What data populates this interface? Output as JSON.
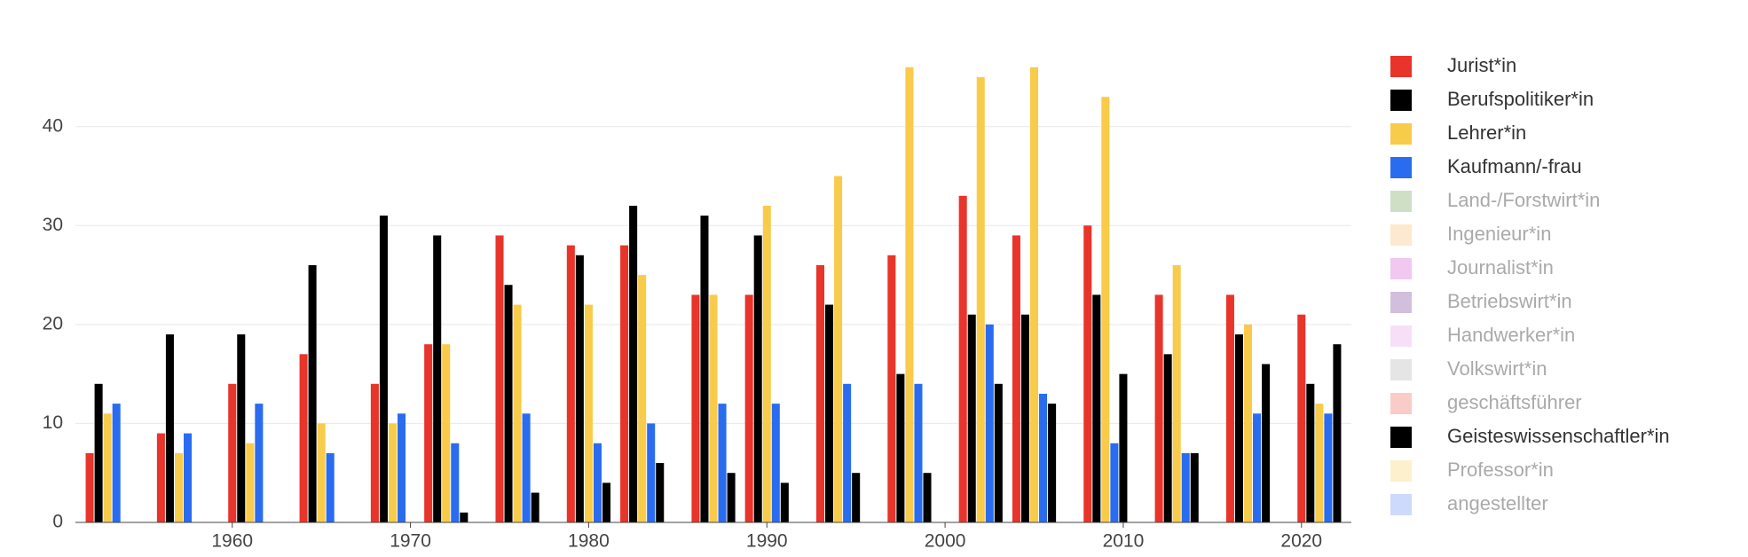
{
  "chart_data": {
    "type": "bar",
    "x": [
      1953,
      1957,
      1961,
      1965,
      1969,
      1972,
      1976,
      1980,
      1983,
      1987,
      1990,
      1994,
      1998,
      2002,
      2005,
      2009,
      2013,
      2017,
      2021
    ],
    "series": [
      {
        "name": "Jurist*in",
        "color": "#e8342a",
        "visible": true,
        "values": [
          7,
          9,
          14,
          17,
          14,
          18,
          29,
          28,
          28,
          23,
          23,
          26,
          27,
          33,
          29,
          30,
          23,
          23,
          21
        ]
      },
      {
        "name": "Berufspolitiker*in",
        "color": "#000000",
        "visible": true,
        "values": [
          14,
          19,
          19,
          26,
          31,
          29,
          24,
          27,
          32,
          31,
          29,
          22,
          15,
          21,
          21,
          23,
          17,
          19,
          14
        ]
      },
      {
        "name": "Lehrer*in",
        "color": "#f9cb4a",
        "visible": true,
        "values": [
          11,
          7,
          8,
          10,
          10,
          18,
          22,
          22,
          25,
          23,
          32,
          35,
          46,
          45,
          46,
          43,
          26,
          20,
          12
        ]
      },
      {
        "name": "Kaufmann/-frau",
        "color": "#2a6cf0",
        "visible": true,
        "values": [
          12,
          9,
          12,
          7,
          11,
          8,
          11,
          8,
          10,
          12,
          12,
          14,
          14,
          20,
          13,
          8,
          7,
          11,
          11
        ]
      },
      {
        "name": "Land-/Forstwirt*in",
        "color": "#9dc08b",
        "visible": false
      },
      {
        "name": "Ingenieur*in",
        "color": "#f9d4a0",
        "visible": false
      },
      {
        "name": "Journalist*in",
        "color": "#e191e1",
        "visible": false
      },
      {
        "name": "Betriebswirt*in",
        "color": "#a580bb",
        "visible": false
      },
      {
        "name": "Handwerker*in",
        "color": "#f0c0f0",
        "visible": false
      },
      {
        "name": "Volkswirt*in",
        "color": "#cccccc",
        "visible": false
      },
      {
        "name": "geschäftsführer",
        "color": "#f49a91",
        "visible": false
      },
      {
        "name": "Geisteswissenschaftler*in",
        "color": "#000000",
        "visible": true,
        "values": [
          null,
          null,
          null,
          null,
          null,
          1,
          3,
          4,
          6,
          5,
          4,
          5,
          5,
          14,
          12,
          15,
          7,
          16,
          18
        ]
      },
      {
        "name": "Professor*in",
        "color": "#fae29b",
        "visible": false
      },
      {
        "name": "angestellter",
        "color": "#9bb6f7",
        "visible": false
      }
    ],
    "xlim": [
      1951.2,
      2022.8
    ],
    "xticks": [
      1960,
      1970,
      1980,
      1990,
      2000,
      2010,
      2020
    ],
    "ylim": [
      0,
      48.4
    ],
    "yticks": [
      0,
      10,
      20,
      30,
      40
    ],
    "grid": true,
    "legend": "right"
  }
}
